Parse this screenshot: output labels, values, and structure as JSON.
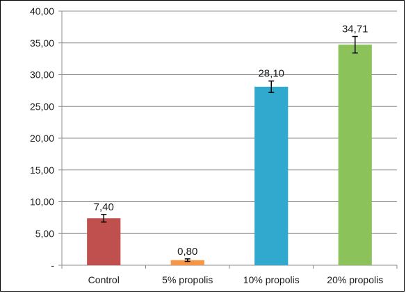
{
  "chart_data": {
    "type": "bar",
    "title": "",
    "xlabel": "",
    "ylabel": "",
    "ylim": [
      0,
      40
    ],
    "y_ticks": [
      {
        "value": 0,
        "label": "-"
      },
      {
        "value": 5,
        "label": "5,00"
      },
      {
        "value": 10,
        "label": "10,00"
      },
      {
        "value": 15,
        "label": "15,00"
      },
      {
        "value": 20,
        "label": "20,00"
      },
      {
        "value": 25,
        "label": "25,00"
      },
      {
        "value": 30,
        "label": "30,00"
      },
      {
        "value": 35,
        "label": "35,00"
      },
      {
        "value": 40,
        "label": "40,00"
      }
    ],
    "grid": true,
    "legend": "none",
    "categories": [
      "Control",
      "5% propolis",
      "10% propolis",
      "20% propolis"
    ],
    "values": [
      7.4,
      0.8,
      28.1,
      34.71
    ],
    "value_labels": [
      "7,40",
      "0,80",
      "28,10",
      "34,71"
    ],
    "errors": [
      0.6,
      0.2,
      0.9,
      1.3
    ],
    "colors": [
      "#c0504d",
      "#f79646",
      "#31a9cf",
      "#8bc25a"
    ]
  }
}
